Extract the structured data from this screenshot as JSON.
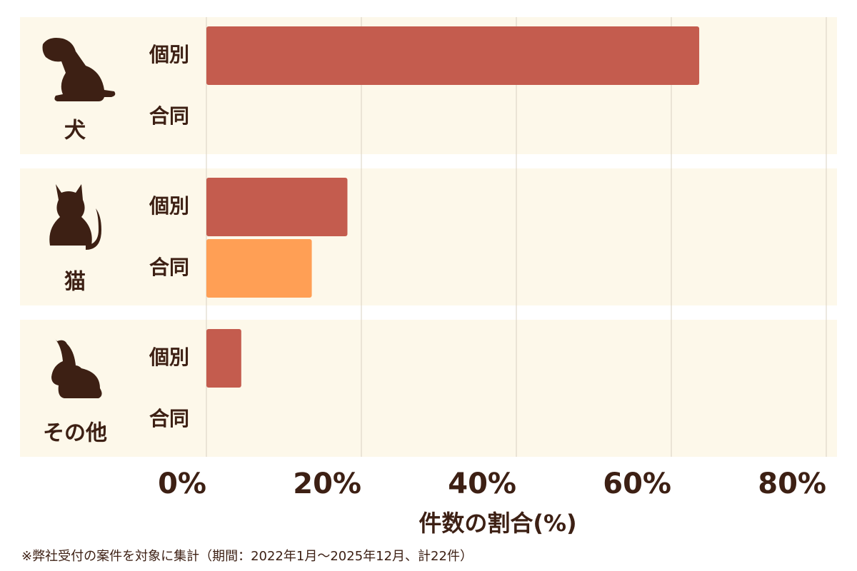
{
  "chart_data": {
    "type": "bar",
    "orientation": "horizontal",
    "categories": [
      "犬",
      "猫",
      "その他"
    ],
    "series": [
      {
        "name": "個別",
        "color": "#c45c4e",
        "values": [
          63.6,
          18.2,
          4.5
        ]
      },
      {
        "name": "合同",
        "color": "#ff9f55",
        "values": [
          0,
          13.6,
          0
        ]
      }
    ],
    "xlim": [
      0,
      80
    ],
    "xticks": [
      {
        "value": 0,
        "label": "0%"
      },
      {
        "value": 20,
        "label": "20%"
      },
      {
        "value": 40,
        "label": "40%"
      },
      {
        "value": 60,
        "label": "60%"
      },
      {
        "value": 80,
        "label": "80%"
      }
    ],
    "grid": true,
    "xlabel": "件数の割合(%)",
    "note": "※弊社受付の案件を対象に集計（期間：2022年1月〜2025年12月、計22件）"
  }
}
